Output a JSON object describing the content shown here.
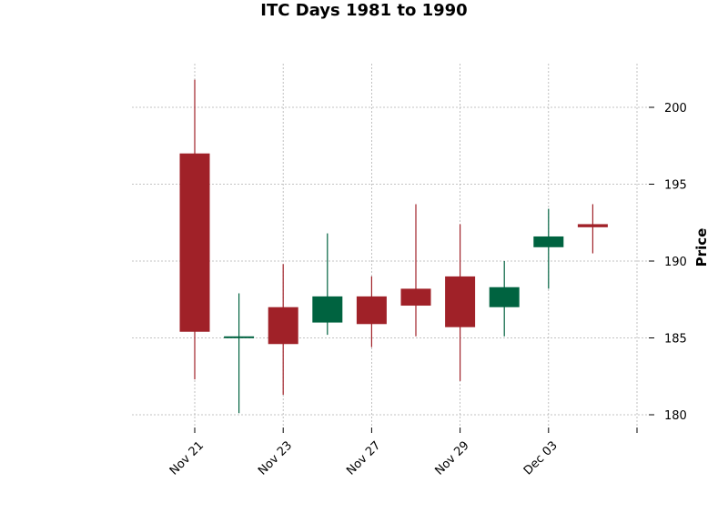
{
  "chart_data": {
    "type": "candlestick",
    "title": "ITC Days 1981 to 1990",
    "ylabel": "Price",
    "xlabel": "",
    "ylim": [
      179,
      203
    ],
    "yticks": [
      180,
      185,
      190,
      195,
      200
    ],
    "xtick_labels": [
      "Nov 21",
      "Nov 23",
      "Nov 27",
      "Nov 29",
      "Dec 03",
      ""
    ],
    "xtick_positions": [
      0,
      2,
      4,
      6,
      8,
      10
    ],
    "grid": true,
    "colors": {
      "up": "#006340",
      "down": "#a02128"
    },
    "candles": [
      {
        "open": 197.0,
        "high": 201.8,
        "low": 182.3,
        "close": 185.4
      },
      {
        "open": 185.0,
        "high": 187.9,
        "low": 180.1,
        "close": 185.1
      },
      {
        "open": 187.0,
        "high": 189.8,
        "low": 181.3,
        "close": 184.6
      },
      {
        "open": 186.0,
        "high": 191.8,
        "low": 185.2,
        "close": 187.7
      },
      {
        "open": 187.7,
        "high": 189.0,
        "low": 184.4,
        "close": 185.9
      },
      {
        "open": 188.2,
        "high": 193.7,
        "low": 185.1,
        "close": 187.1
      },
      {
        "open": 189.0,
        "high": 192.4,
        "low": 182.2,
        "close": 185.7
      },
      {
        "open": 187.0,
        "high": 190.0,
        "low": 185.1,
        "close": 188.3
      },
      {
        "open": 190.9,
        "high": 193.4,
        "low": 188.2,
        "close": 191.6
      },
      {
        "open": 192.4,
        "high": 193.7,
        "low": 190.5,
        "close": 192.2
      }
    ]
  }
}
